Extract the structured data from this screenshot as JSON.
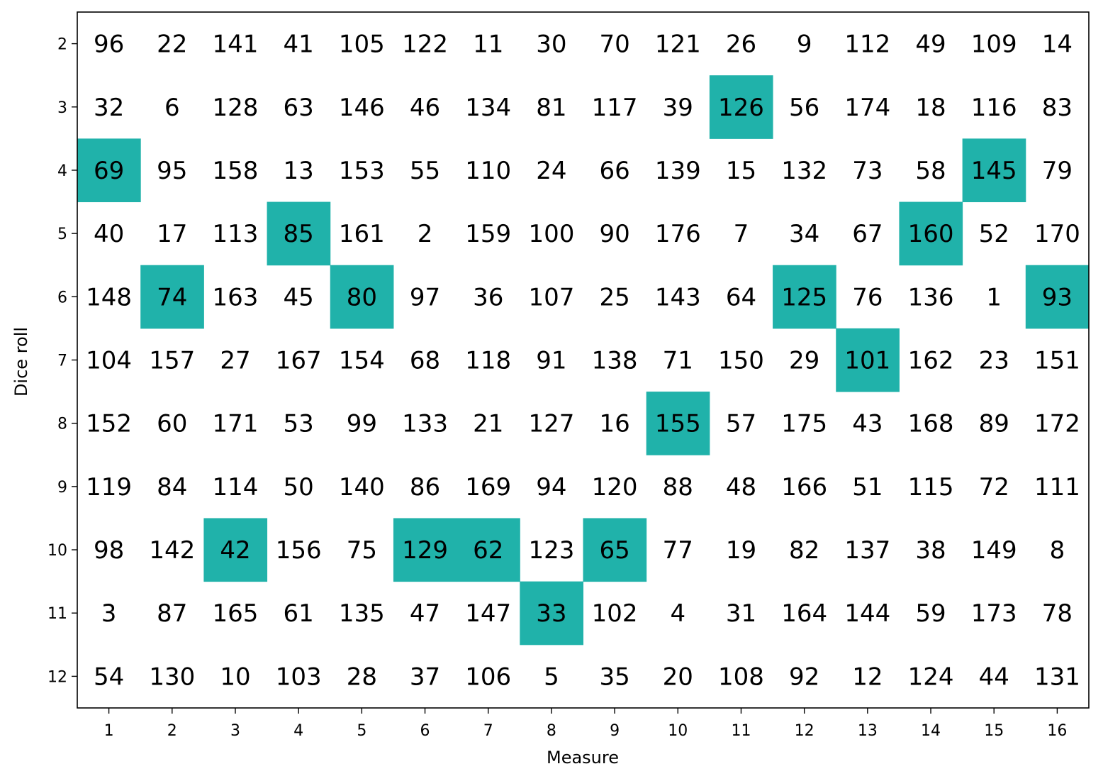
{
  "chart_data": {
    "type": "table",
    "xlabel": "Measure",
    "ylabel": "Dice roll",
    "x": [
      1,
      2,
      3,
      4,
      5,
      6,
      7,
      8,
      9,
      10,
      11,
      12,
      13,
      14,
      15,
      16
    ],
    "y": [
      2,
      3,
      4,
      5,
      6,
      7,
      8,
      9,
      10,
      11,
      12
    ],
    "values": [
      [
        96,
        22,
        141,
        41,
        105,
        122,
        11,
        30,
        70,
        121,
        26,
        9,
        112,
        49,
        109,
        14
      ],
      [
        32,
        6,
        128,
        63,
        146,
        46,
        134,
        81,
        117,
        39,
        126,
        56,
        174,
        18,
        116,
        83
      ],
      [
        69,
        95,
        158,
        13,
        153,
        55,
        110,
        24,
        66,
        139,
        15,
        132,
        73,
        58,
        145,
        79
      ],
      [
        40,
        17,
        113,
        85,
        161,
        2,
        159,
        100,
        90,
        176,
        7,
        34,
        67,
        160,
        52,
        170
      ],
      [
        148,
        74,
        163,
        45,
        80,
        97,
        36,
        107,
        25,
        143,
        64,
        125,
        76,
        136,
        1,
        93
      ],
      [
        104,
        157,
        27,
        167,
        154,
        68,
        118,
        91,
        138,
        71,
        150,
        29,
        101,
        162,
        23,
        151
      ],
      [
        152,
        60,
        171,
        53,
        99,
        133,
        21,
        127,
        16,
        155,
        57,
        175,
        43,
        168,
        89,
        172
      ],
      [
        119,
        84,
        114,
        50,
        140,
        86,
        169,
        94,
        120,
        88,
        48,
        166,
        51,
        115,
        72,
        111
      ],
      [
        98,
        142,
        42,
        156,
        75,
        129,
        62,
        123,
        65,
        77,
        19,
        82,
        137,
        38,
        149,
        8
      ],
      [
        3,
        87,
        165,
        61,
        135,
        47,
        147,
        33,
        102,
        4,
        31,
        164,
        144,
        59,
        173,
        78
      ],
      [
        54,
        130,
        10,
        103,
        28,
        37,
        106,
        5,
        35,
        20,
        108,
        92,
        12,
        124,
        44,
        131
      ]
    ],
    "highlighted_roll_by_measure": [
      4,
      6,
      10,
      5,
      6,
      10,
      10,
      11,
      10,
      8,
      3,
      6,
      7,
      5,
      4,
      6
    ],
    "highlight_color": "#20b2aa",
    "grid": false
  }
}
